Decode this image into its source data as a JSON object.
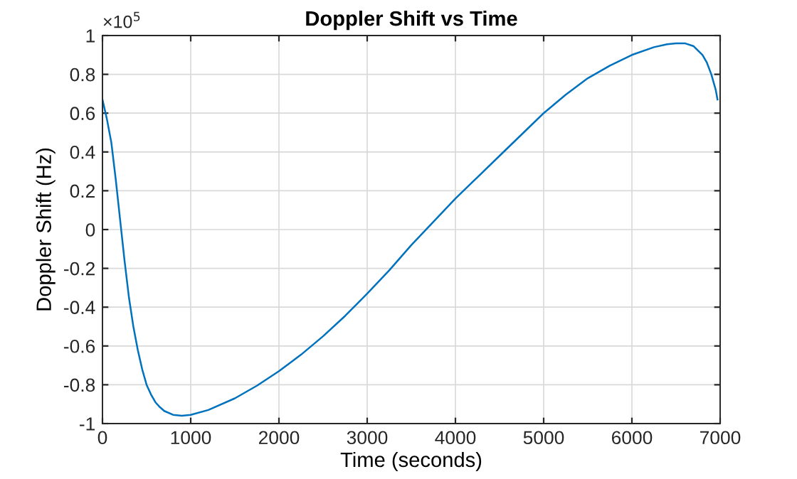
{
  "chart_data": {
    "type": "line",
    "title": "Doppler Shift vs Time",
    "xlabel": "Time (seconds)",
    "ylabel": "Doppler Shift (Hz)",
    "annotations": [
      "×10$^{5}$"
    ],
    "series": [
      {
        "color": "#0072bd",
        "x": [
          0,
          50,
          100,
          150,
          200,
          250,
          300,
          350,
          400,
          450,
          500,
          550,
          600,
          650,
          700,
          800,
          900,
          1000,
          1200,
          1500,
          1750,
          2000,
          2250,
          2500,
          2750,
          3000,
          3250,
          3500,
          3750,
          4000,
          4250,
          4500,
          4750,
          5000,
          5250,
          5500,
          5750,
          6000,
          6250,
          6400,
          6500,
          6600,
          6700,
          6800,
          6850,
          6900,
          6950,
          6970
        ],
        "values": [
          0.67,
          0.57,
          0.45,
          0.26,
          0.05,
          -0.16,
          -0.35,
          -0.5,
          -0.62,
          -0.72,
          -0.8,
          -0.85,
          -0.89,
          -0.915,
          -0.935,
          -0.955,
          -0.96,
          -0.955,
          -0.93,
          -0.87,
          -0.805,
          -0.73,
          -0.645,
          -0.55,
          -0.445,
          -0.33,
          -0.21,
          -0.08,
          0.04,
          0.16,
          0.27,
          0.38,
          0.49,
          0.6,
          0.695,
          0.78,
          0.845,
          0.9,
          0.94,
          0.955,
          0.96,
          0.96,
          0.945,
          0.9,
          0.86,
          0.8,
          0.72,
          0.67
        ]
      }
    ],
    "xlim": [
      0,
      7000
    ],
    "xticks": [
      0,
      1000,
      2000,
      3000,
      4000,
      5000,
      6000,
      7000
    ],
    "ylim": [
      -1,
      1
    ],
    "yticks": [
      -1,
      -0.8,
      -0.6,
      -0.4,
      -0.2,
      0,
      0.2,
      0.4,
      0.6,
      0.8,
      1
    ],
    "grid": true,
    "legend": false,
    "marker": "none",
    "line_style": "solid"
  }
}
